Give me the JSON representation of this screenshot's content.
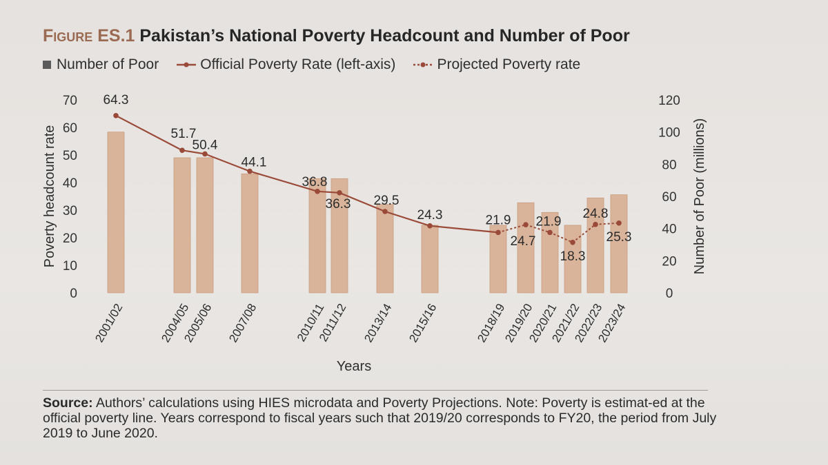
{
  "figure": {
    "label": "Figure ES.1",
    "title": "Pakistan’s National Poverty Headcount and Number of Poor"
  },
  "legend": {
    "bars": "Number of Poor",
    "official": "Official Poverty Rate (left-axis)",
    "projected": "Projected Poverty rate"
  },
  "source": {
    "label": "Source:",
    "text": "Authors’ calculations using HIES microdata and Poverty Projections. Note: Poverty is estimat-ed at the official poverty line. Years correspond to fiscal years such that 2019/20 corresponds to FY20, the period from July 2019 to June 2020."
  },
  "colors": {
    "bar": "#d9b49a",
    "bar_edge": "#c99c7d",
    "line": "#9a4a38",
    "grid": "#d9d3cf"
  },
  "chart_data": {
    "type": "bar",
    "xlabel": "Years",
    "ylabel": "Poverty headcount rate",
    "y2label": "Number of Poor (millions)",
    "ylim": [
      0,
      70
    ],
    "yticks": [
      0,
      10,
      20,
      30,
      40,
      50,
      60,
      70
    ],
    "y2lim": [
      0,
      120
    ],
    "y2ticks": [
      0,
      20,
      40,
      60,
      80,
      100,
      120
    ],
    "categories": [
      "2001/02",
      "2004/05",
      "2005/06",
      "2007/08",
      "2010/11",
      "2011/12",
      "2013/14",
      "2015/16",
      "2018/19",
      "2019/20",
      "2020/21",
      "2021/22",
      "2022/23",
      "2023/24"
    ],
    "series": [
      {
        "name": "Number of Poor",
        "type": "bar",
        "axis": "right",
        "values": [
          100,
          84,
          84,
          74,
          71,
          71,
          55,
          42,
          42,
          56,
          50,
          42,
          59,
          61
        ]
      },
      {
        "name": "Official Poverty Rate (left-axis)",
        "type": "line",
        "axis": "left",
        "values": [
          64.3,
          51.7,
          50.4,
          44.1,
          36.8,
          36.3,
          29.5,
          24.3,
          21.9,
          null,
          null,
          null,
          null,
          null
        ],
        "labels": [
          "64.3",
          "51.7",
          "50.4",
          "44.1",
          "36.8",
          "36.3",
          "29.5",
          "24.3",
          "21.9",
          null,
          null,
          null,
          null,
          null
        ]
      },
      {
        "name": "Projected Poverty rate",
        "type": "line-dashed",
        "axis": "left",
        "values": [
          null,
          null,
          null,
          null,
          null,
          null,
          null,
          null,
          21.9,
          24.7,
          21.9,
          18.3,
          24.8,
          25.3
        ],
        "labels": [
          null,
          null,
          null,
          null,
          null,
          null,
          null,
          null,
          null,
          "24.7",
          "21.9",
          "18.3",
          "24.8",
          "25.3"
        ]
      }
    ]
  }
}
